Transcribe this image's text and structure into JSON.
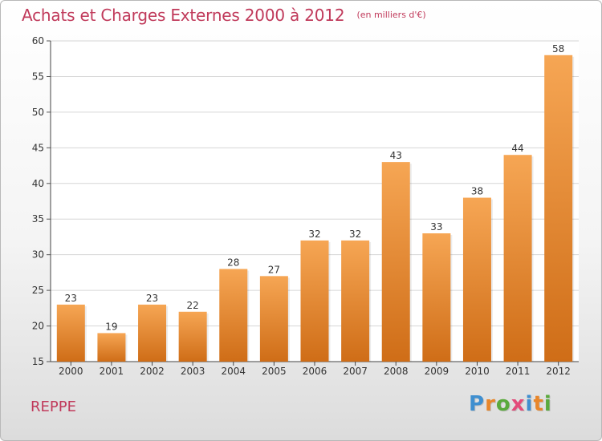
{
  "title": "Achats et Charges Externes 2000 à 2012",
  "subtitle": "(en milliers d'€)",
  "place": "REPPE",
  "logo": {
    "letters": [
      "P",
      "r",
      "o",
      "x",
      "i",
      "t",
      "i"
    ],
    "colors": [
      "#3f8fd0",
      "#e8862a",
      "#5aaa3c",
      "#e34b7a",
      "#3f8fd0",
      "#e8862a",
      "#5aaa3c"
    ]
  },
  "colors": {
    "bar_light": "#f6a654",
    "bar_dark": "#cf6d17",
    "title": "#c0395a"
  },
  "chart_data": {
    "type": "bar",
    "categories": [
      "2000",
      "2001",
      "2002",
      "2003",
      "2004",
      "2005",
      "2006",
      "2007",
      "2008",
      "2009",
      "2010",
      "2011",
      "2012"
    ],
    "values": [
      23,
      19,
      23,
      22,
      28,
      27,
      32,
      32,
      43,
      33,
      38,
      44,
      58
    ],
    "ylim": [
      15,
      60
    ],
    "yticks": [
      15,
      20,
      25,
      30,
      35,
      40,
      45,
      50,
      55,
      60
    ],
    "grid": true,
    "data_labels": true
  }
}
